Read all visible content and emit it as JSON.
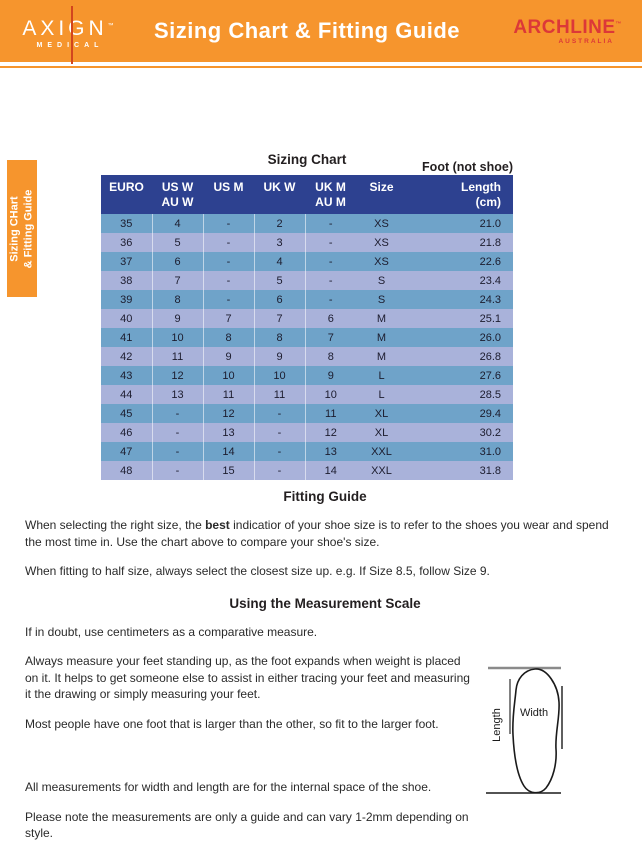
{
  "header": {
    "brand_left": {
      "name": "AXIGN",
      "tm": "™",
      "sub": "MEDICAL"
    },
    "title": "Sizing Chart & Fitting Guide",
    "brand_right": {
      "name": "ARCHLINE",
      "tm": "™",
      "sub": "AUSTRALIA"
    }
  },
  "side_tab": {
    "line1": "Sizing CHart",
    "line2": "& Fitting Guide"
  },
  "sizing_chart": {
    "title": "Sizing Chart",
    "note": "Foot (not shoe)",
    "columns": [
      {
        "line1": "EURO",
        "line2": ""
      },
      {
        "line1": "US W",
        "line2": "AU W"
      },
      {
        "line1": "US M",
        "line2": ""
      },
      {
        "line1": "UK W",
        "line2": ""
      },
      {
        "line1": "UK M",
        "line2": "AU M"
      },
      {
        "line1": "Size",
        "line2": ""
      },
      {
        "line1": "Length",
        "line2": "(cm)"
      }
    ],
    "rows": [
      [
        "35",
        "4",
        "-",
        "2",
        "-",
        "XS",
        "21.0"
      ],
      [
        "36",
        "5",
        "-",
        "3",
        "-",
        "XS",
        "21.8"
      ],
      [
        "37",
        "6",
        "-",
        "4",
        "-",
        "XS",
        "22.6"
      ],
      [
        "38",
        "7",
        "-",
        "5",
        "-",
        "S",
        "23.4"
      ],
      [
        "39",
        "8",
        "-",
        "6",
        "-",
        "S",
        "24.3"
      ],
      [
        "40",
        "9",
        "7",
        "7",
        "6",
        "M",
        "25.1"
      ],
      [
        "41",
        "10",
        "8",
        "8",
        "7",
        "M",
        "26.0"
      ],
      [
        "42",
        "11",
        "9",
        "9",
        "8",
        "M",
        "26.8"
      ],
      [
        "43",
        "12",
        "10",
        "10",
        "9",
        "L",
        "27.6"
      ],
      [
        "44",
        "13",
        "11",
        "11",
        "10",
        "L",
        "28.5"
      ],
      [
        "45",
        "-",
        "12",
        "-",
        "11",
        "XL",
        "29.4"
      ],
      [
        "46",
        "-",
        "13",
        "-",
        "12",
        "XL",
        "30.2"
      ],
      [
        "47",
        "-",
        "14",
        "-",
        "13",
        "XXL",
        "31.0"
      ],
      [
        "48",
        "-",
        "15",
        "-",
        "14",
        "XXL",
        "31.8"
      ]
    ]
  },
  "fitting_guide": {
    "heading": "Fitting Guide",
    "p1_before": "When selecting the right size, the ",
    "p1_bold": "best",
    "p1_after": " indicatior of your shoe size is to refer to the shoes you wear and spend the most time in. Use the chart above to compare your shoe's size.",
    "p2": "When fitting to half size, always select the closest size up. e.g. If Size 8.5, follow Size 9."
  },
  "measurement_scale": {
    "heading": "Using the Measurement Scale",
    "p1": "If in doubt, use centimeters as a comparative measure.",
    "p2": "Always measure your feet standing up, as the foot expands when weight is placed on it. It helps to get someone else to assist in either tracing your feet and measuring it the drawing or simply measuring your feet.",
    "p3": "Most people have one foot that is larger than the other, so fit to the larger foot.",
    "p4": "All measurements for width and length are for the internal space of the shoe.",
    "p5": "Please note the measurements are only a guide and can vary 1-2mm depending on style."
  },
  "diagram": {
    "width_label": "Width",
    "length_label": "Length"
  },
  "colors": {
    "banner_orange": "#F6952D",
    "logo_line_red": "#D2451E",
    "archline_red": "#DC3838",
    "table_header_navy": "#2D4190",
    "row_steel_blue": "#6FA3C9",
    "row_lavender": "#A9B2DA",
    "text_dark": "#231F20"
  }
}
